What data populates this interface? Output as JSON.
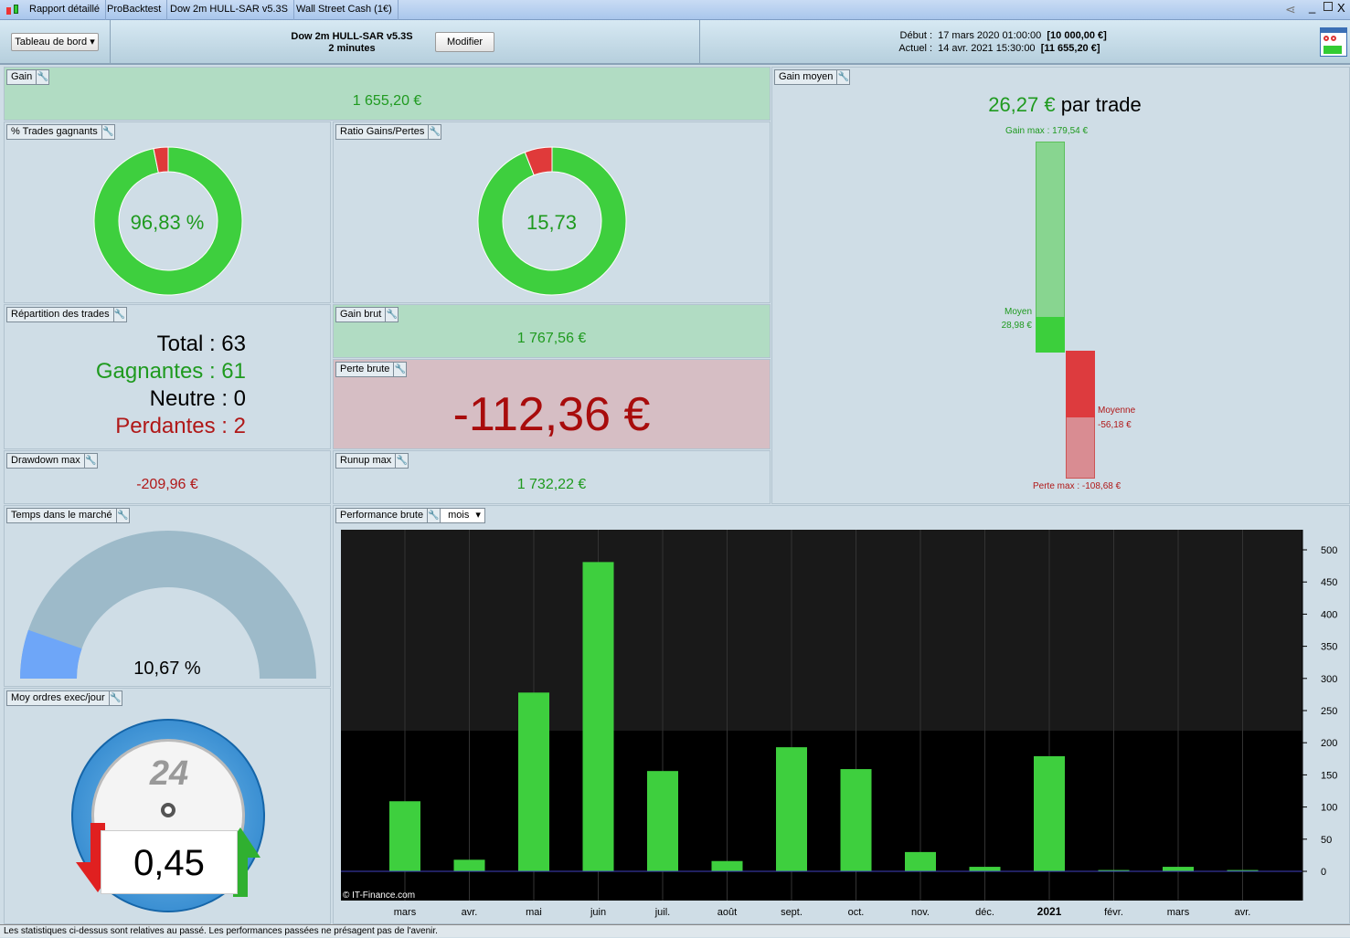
{
  "titlebar": {
    "tabs": [
      "Rapport détaillé",
      "ProBacktest",
      "Dow 2m HULL-SAR v5.3S",
      "Wall Street Cash (1€)"
    ]
  },
  "header": {
    "view_select": "Tableau de bord",
    "strategy": "Dow 2m HULL-SAR v5.3S",
    "timeframe": "2 minutes",
    "modify": "Modifier",
    "start_label": "Début :",
    "start_date": "17 mars 2020 01:00:00",
    "start_capital": "[10 000,00 €]",
    "current_label": "Actuel :",
    "current_date": "14 avr. 2021 15:30:00",
    "current_capital": "[11 655,20 €]"
  },
  "gain": {
    "title": "Gain",
    "value": "1 655,20 €"
  },
  "win_pct": {
    "title": "% Trades gagnants",
    "value": "96,83 %",
    "percent": 96.83
  },
  "ratio": {
    "title": "Ratio Gains/Pertes",
    "value": "15,73",
    "ratio": 15.73
  },
  "repartition": {
    "title": "Répartition des trades",
    "total": "Total : 63",
    "winners": "Gagnantes : 61",
    "neutral": "Neutre : 0",
    "losers": "Perdantes : 2"
  },
  "gross_gain": {
    "title": "Gain brut",
    "value": "1 767,56 €"
  },
  "gross_loss": {
    "title": "Perte brute",
    "value": "-112,36 €"
  },
  "drawdown": {
    "title": "Drawdown max",
    "value": "-209,96 €"
  },
  "runup": {
    "title": "Runup max",
    "value": "1 732,22 €"
  },
  "avg_gain": {
    "title": "Gain moyen",
    "value": "26,27 €",
    "suffix": " par trade",
    "max_gain": "Gain max : 179,54 €",
    "avg_win_label": "Moyen",
    "avg_win": "28,98 €",
    "avg_loss_label": "Moyenne",
    "avg_loss": "-56,18 €",
    "max_loss": "Perte max : -108,68 €",
    "values": {
      "max_gain": 179.54,
      "avg_win": 28.98,
      "avg_loss": -56.18,
      "max_loss": -108.68
    }
  },
  "time_in_market": {
    "title": "Temps dans le marché",
    "value": "10,67 %",
    "percent": 10.67
  },
  "orders": {
    "title": "Moy ordres exec/jour",
    "dial": "24",
    "value": "0,45"
  },
  "performance": {
    "title": "Performance brute",
    "period": "mois",
    "copyright": "© IT-Finance.com"
  },
  "chart_data": {
    "type": "bar",
    "categories": [
      "mars",
      "avr.",
      "mai",
      "juin",
      "juil.",
      "août",
      "sept.",
      "oct.",
      "nov.",
      "déc.",
      "2021",
      "févr.",
      "mars",
      "avr."
    ],
    "values": [
      109,
      18,
      278,
      481,
      156,
      16,
      193,
      159,
      30,
      7,
      179,
      2,
      7,
      2
    ],
    "ylim": [
      0,
      530
    ],
    "yticks": [
      0,
      50,
      100,
      150,
      200,
      250,
      300,
      350,
      400,
      450,
      500
    ],
    "grid": true,
    "colors": {
      "bar": "#3ecf3e",
      "bg": "#000000"
    }
  },
  "footer": "Les statistiques ci-dessus sont relatives au passé. Les performances passées ne présagent pas de l'avenir."
}
